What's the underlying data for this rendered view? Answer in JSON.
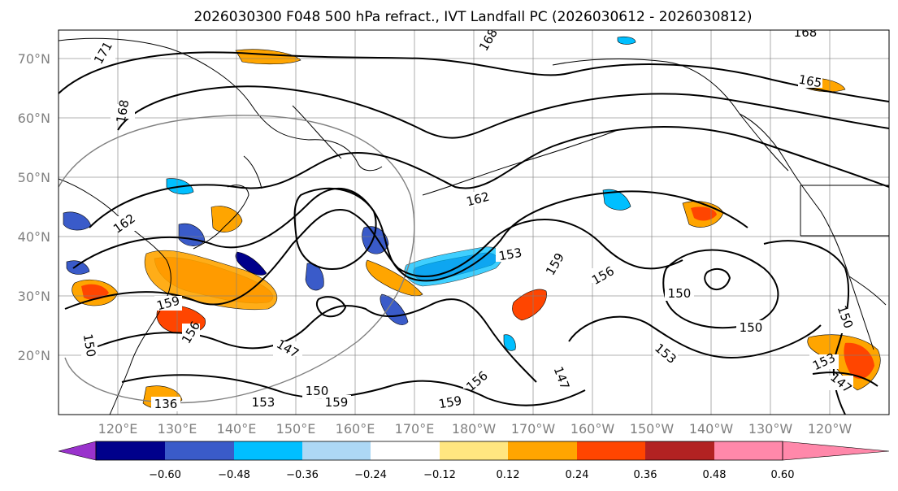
{
  "title": "2026030300 F048 500 hPa refract., IVT Landfall PC (2026030612 - 2026030812)",
  "lat_labels": [
    "70°N",
    "60°N",
    "50°N",
    "40°N",
    "30°N",
    "20°N"
  ],
  "lon_labels": [
    "120°E",
    "130°E",
    "140°E",
    "150°E",
    "160°E",
    "170°E",
    "180°W",
    "170°W",
    "160°W",
    "150°W",
    "140°W",
    "130°W",
    "120°W"
  ],
  "colorbar": {
    "tick_labels": [
      "−0.60",
      "−0.48",
      "−0.36",
      "−0.24",
      "−0.12",
      "0.12",
      "0.24",
      "0.36",
      "0.48",
      "0.60"
    ],
    "colors": [
      "#9932cc",
      "#00008b",
      "#3a5bc9",
      "#00bfff",
      "#add8f5",
      "#ffffff",
      "#ffe680",
      "#ffa500",
      "#ff4500",
      "#b22222",
      "#ff88aa"
    ]
  },
  "contour_labels": [
    "171",
    "168",
    "168",
    "168",
    "165",
    "162",
    "162",
    "159",
    "159",
    "159",
    "156",
    "156",
    "153",
    "153",
    "153",
    "153",
    "150",
    "150",
    "150",
    "150",
    "150",
    "147",
    "147",
    "147",
    "159",
    "156",
    "136"
  ],
  "legend_colors": {
    "coast": "#000000",
    "grid": "#808080",
    "circle": "#808080"
  }
}
